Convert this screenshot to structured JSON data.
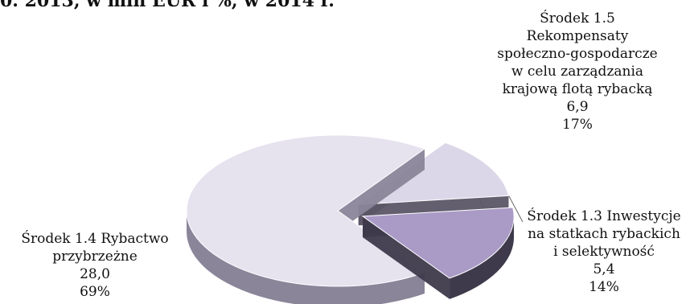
{
  "header": {
    "partial_title": "0. 2013, w mln EUR i %, w 2014 r."
  },
  "chart_data": {
    "type": "pie",
    "title": "",
    "style": "3d-exploded",
    "decimal_separator": ",",
    "slices": [
      {
        "label_lines": [
          "Środek 1.4 Rybactwo",
          "przybrzeżne"
        ],
        "value": 28.0,
        "value_text": "28,0",
        "percent": 69,
        "percent_text": "69%",
        "color": "#e6e2ee",
        "side_color": "#8a8599"
      },
      {
        "label_lines": [
          "Środek 1.5",
          "Rekompensaty",
          "społeczno-gospodarcze",
          "w celu zarządzania",
          "krajową flotą rybacką"
        ],
        "value": 6.9,
        "value_text": "6,9",
        "percent": 17,
        "percent_text": "17%",
        "color": "#a99ac6",
        "side_color": "#3f3a4b"
      },
      {
        "label_lines": [
          "Środek 1.3 Inwestycje",
          "na statkach rybackich",
          "i selektywność"
        ],
        "value": 5.4,
        "value_text": "5,4",
        "percent": 14,
        "percent_text": "14%",
        "color": "#dcd7e8",
        "side_color": "#5b5666"
      }
    ]
  }
}
